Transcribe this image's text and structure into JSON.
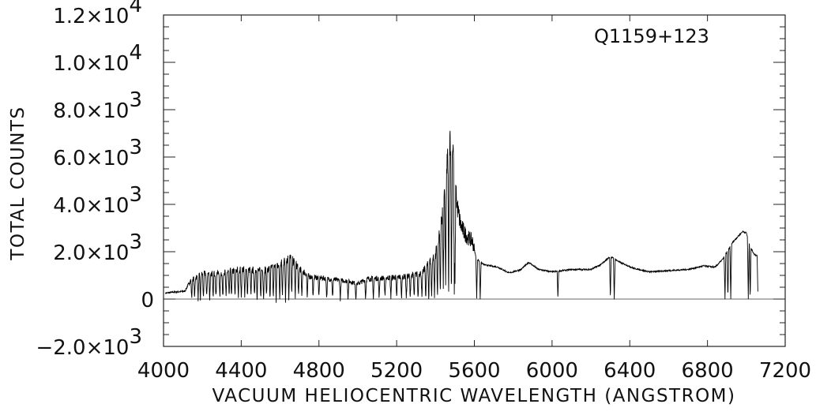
{
  "chart_data": {
    "type": "line",
    "title": "",
    "annotation": "Q1159+123",
    "xlabel": "VACUUM HELIOCENTRIC WAVELENGTH (ANGSTROM)",
    "ylabel": "TOTAL COUNTS",
    "xlim": [
      4000,
      7200
    ],
    "ylim": [
      -2000,
      12000
    ],
    "grid": false,
    "x_ticks": [
      4000,
      4400,
      4800,
      5200,
      5600,
      6000,
      6400,
      6800,
      7200
    ],
    "x_tick_labels": [
      "4000",
      "4400",
      "4800",
      "5200",
      "5600",
      "6000",
      "6400",
      "6800",
      "7200"
    ],
    "y_ticks": [
      {
        "value": 12000,
        "mantissa": "1.2×10",
        "exp": "4"
      },
      {
        "value": 10000,
        "mantissa": "1.0×10",
        "exp": "4"
      },
      {
        "value": 8000,
        "mantissa": "8.0×10",
        "exp": "3"
      },
      {
        "value": 6000,
        "mantissa": "6.0×10",
        "exp": "3"
      },
      {
        "value": 4000,
        "mantissa": "4.0×10",
        "exp": "3"
      },
      {
        "value": 2000,
        "mantissa": "2.0×10",
        "exp": "3"
      },
      {
        "value": 0,
        "mantissa": "0",
        "exp": ""
      },
      {
        "value": -2000,
        "mantissa": "−2.0×10",
        "exp": "3"
      }
    ],
    "series": [
      {
        "continuum": [
          [
            4010,
            250
          ],
          [
            4060,
            300
          ],
          [
            4110,
            330
          ],
          [
            4140,
            800
          ],
          [
            4200,
            1050
          ],
          [
            4300,
            1100
          ],
          [
            4400,
            1250
          ],
          [
            4500,
            1200
          ],
          [
            4580,
            1350
          ],
          [
            4650,
            1750
          ],
          [
            4700,
            1300
          ],
          [
            4750,
            950
          ],
          [
            4850,
            850
          ],
          [
            4950,
            750
          ],
          [
            5000,
            650
          ],
          [
            5050,
            850
          ],
          [
            5150,
            900
          ],
          [
            5250,
            950
          ],
          [
            5330,
            1100
          ],
          [
            5400,
            1900
          ],
          [
            5430,
            3200
          ],
          [
            5460,
            5600
          ],
          [
            5475,
            6950
          ],
          [
            5490,
            6500
          ],
          [
            5510,
            4000
          ],
          [
            5530,
            3100
          ],
          [
            5560,
            2650
          ],
          [
            5590,
            2450
          ],
          [
            5610,
            1700
          ],
          [
            5650,
            1450
          ],
          [
            5720,
            1350
          ],
          [
            5780,
            1100
          ],
          [
            5840,
            1250
          ],
          [
            5880,
            1550
          ],
          [
            5930,
            1250
          ],
          [
            6000,
            1150
          ],
          [
            6100,
            1250
          ],
          [
            6200,
            1250
          ],
          [
            6250,
            1450
          ],
          [
            6300,
            1800
          ],
          [
            6350,
            1550
          ],
          [
            6420,
            1300
          ],
          [
            6500,
            1150
          ],
          [
            6600,
            1200
          ],
          [
            6700,
            1250
          ],
          [
            6780,
            1400
          ],
          [
            6840,
            1350
          ],
          [
            6880,
            1700
          ],
          [
            6930,
            2400
          ],
          [
            6980,
            2850
          ],
          [
            7000,
            2800
          ],
          [
            7020,
            2200
          ],
          [
            7040,
            1900
          ],
          [
            7060,
            1800
          ]
        ],
        "absorption_lines": [
          4145,
          4160,
          4178,
          4190,
          4205,
          4222,
          4238,
          4255,
          4270,
          4290,
          4305,
          4322,
          4338,
          4350,
          4368,
          4385,
          4400,
          4418,
          4432,
          4450,
          4468,
          4482,
          4500,
          4515,
          4530,
          4548,
          4565,
          4580,
          4598,
          4612,
          4628,
          4645,
          4660,
          4678,
          4695,
          4712,
          4740,
          4770,
          4800,
          4840,
          4870,
          4910,
          4950,
          4990,
          5040,
          5080,
          5110,
          5140,
          5170,
          5200,
          5225,
          5250,
          5270,
          5290,
          5310,
          5330,
          5350,
          5365,
          5380,
          5395,
          5410,
          5425,
          5440,
          5452,
          5468,
          5482,
          5497,
          5500,
          5612,
          5630,
          6030,
          6300,
          6320,
          6890,
          6905,
          6920,
          7010,
          7020,
          7060
        ]
      }
    ]
  }
}
